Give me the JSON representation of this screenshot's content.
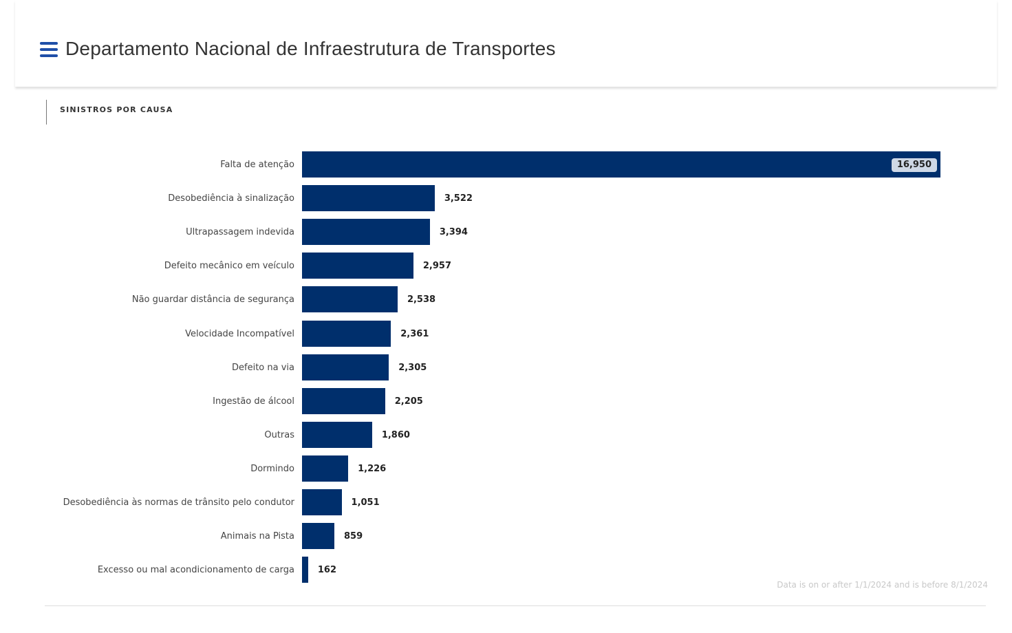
{
  "header": {
    "title": "Departamento Nacional de Infraestrutura de Transportes",
    "menu_icon": "hamburger-menu-icon"
  },
  "chart_data": {
    "type": "bar",
    "orientation": "horizontal",
    "title": "SINISTROS POR CAUSA",
    "categories": [
      "Falta de atenção",
      "Desobediência à sinalização",
      "Ultrapassagem indevida",
      "Defeito mecânico em veículo",
      "Não guardar distância de segurança",
      "Velocidade Incompatível",
      "Defeito na via",
      "Ingestão de álcool",
      "Outras",
      "Dormindo",
      "Desobediência às normas de trânsito pelo condutor",
      "Animais na Pista",
      "Excesso ou mal acondicionamento de carga"
    ],
    "values": [
      16950,
      3522,
      3394,
      2957,
      2538,
      2361,
      2305,
      2205,
      1860,
      1226,
      1051,
      859,
      162
    ],
    "labels": [
      "16,950",
      "3,522",
      "3,394",
      "2,957",
      "2,538",
      "2,361",
      "2,305",
      "2,205",
      "1,860",
      "1,226",
      "1,051",
      "859",
      "162"
    ],
    "xlim": [
      0,
      16950
    ],
    "grid": false,
    "bar_color": "#002f6c"
  },
  "footer": {
    "filter_note": "Data is on or after 1/1/2024 and is before 8/1/2024"
  }
}
